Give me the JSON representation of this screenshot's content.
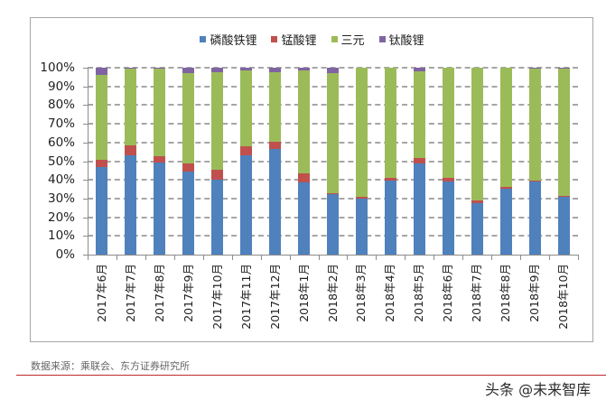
{
  "chart_data": {
    "type": "bar",
    "stacked": true,
    "percent_stacked": true,
    "title": "",
    "xlabel": "",
    "ylabel": "",
    "ylim": [
      0,
      100
    ],
    "grid": true,
    "legend_position": "top",
    "y_ticks": [
      "0%",
      "10%",
      "20%",
      "30%",
      "40%",
      "50%",
      "60%",
      "70%",
      "80%",
      "90%",
      "100%"
    ],
    "categories": [
      "2017年6月",
      "2017年7月",
      "2017年8月",
      "2017年9月",
      "2017年10月",
      "2017年11月",
      "2017年12月",
      "2018年1月",
      "2018年2月",
      "2018年3月",
      "2018年4月",
      "2018年5月",
      "2018年6月",
      "2018年7月",
      "2018年8月",
      "2018年9月",
      "2018年10月"
    ],
    "series": [
      {
        "name": "磷酸铁锂",
        "color": "#4f81bd",
        "values": [
          46.8,
          53.1,
          49.3,
          44.6,
          40.1,
          53.2,
          56.5,
          38.6,
          32.5,
          30.1,
          39.6,
          48.8,
          38.9,
          27.5,
          35.1,
          38.9,
          30.7
        ]
      },
      {
        "name": "锰酸锂",
        "color": "#c0504d",
        "values": [
          4.0,
          5.6,
          3.6,
          4.0,
          5.4,
          4.7,
          3.8,
          4.7,
          0.3,
          0.6,
          1.6,
          2.7,
          2.0,
          1.6,
          1.3,
          0.7,
          0.8
        ]
      },
      {
        "name": "三元",
        "color": "#9bbb59",
        "values": [
          45.4,
          41.0,
          46.6,
          48.6,
          51.9,
          40.5,
          37.4,
          55.4,
          64.4,
          69.1,
          58.6,
          46.7,
          58.9,
          70.7,
          63.4,
          59.9,
          68.0
        ]
      },
      {
        "name": "钛酸锂",
        "color": "#8064a2",
        "values": [
          3.8,
          0.3,
          0.5,
          2.8,
          2.6,
          1.6,
          2.3,
          1.3,
          2.8,
          0.2,
          0.2,
          1.8,
          0.2,
          0.2,
          0.2,
          0.5,
          0.5
        ]
      }
    ]
  },
  "footer": {
    "source": "数据来源：乘联会、东方证券研究所",
    "watermark": "头条 @未来智库"
  },
  "colors": {
    "gridline": "#a6a6a6",
    "axis": "#8c8c8c",
    "rule": "#c0282d"
  }
}
